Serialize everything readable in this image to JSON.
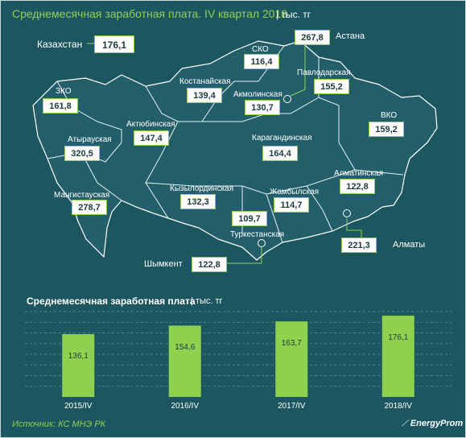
{
  "header": {
    "title": "Среднемесячная заработная плата. IV квартал 2018",
    "unit": "| тыс. тг"
  },
  "national": {
    "label": "Казахстан",
    "value": "176,1"
  },
  "regions": {
    "zko": {
      "label": "ЗКО",
      "value": "161,8"
    },
    "atyrau": {
      "label": "Атырауская",
      "value": "320,5"
    },
    "mangistau": {
      "label": "Мангистауская",
      "value": "278,7"
    },
    "aktobe": {
      "label": "Актюбинская",
      "value": "147,4"
    },
    "kostanay": {
      "label": "Костанайская",
      "value": "139,4"
    },
    "sko": {
      "label": "СКО",
      "value": "116,4"
    },
    "akmola": {
      "label": "Акмолинская",
      "value": "130,7"
    },
    "pavlodar": {
      "label": "Павлодарская",
      "value": "155,2"
    },
    "astana": {
      "label": "Астана",
      "value": "267,8"
    },
    "vko": {
      "label": "ВКО",
      "value": "159,2"
    },
    "karaganda": {
      "label": "Карагандинская",
      "value": "164,4"
    },
    "kyzylorda": {
      "label": "Кызылординская",
      "value": "132,3"
    },
    "zhambyl": {
      "label": "Жамбылская",
      "value": "114,7"
    },
    "almaty_obl": {
      "label": "Алматинская",
      "value": "122,8"
    },
    "turkestan": {
      "label": "Туркестанская",
      "value": "109,7"
    },
    "almaty": {
      "label": "Алматы",
      "value": "221,3"
    },
    "shymkent": {
      "label": "Шымкент",
      "value": "122,8"
    }
  },
  "chart": {
    "title": "Среднемесячная заработная плата",
    "unit": "| тыс. тг"
  },
  "chart_data": {
    "type": "bar",
    "categories": [
      "2015/IV",
      "2016/IV",
      "2017/IV",
      "2018/IV"
    ],
    "values": [
      136.1,
      154.6,
      163.7,
      176.1
    ],
    "value_labels": [
      "136,1",
      "154,6",
      "163,7",
      "176,1"
    ],
    "title": "Среднемесячная заработная плата",
    "ylabel": "| тыс. тг",
    "ylim": [
      0,
      185
    ],
    "grid": true,
    "bar_color": "#8fd14f"
  },
  "footer": {
    "source": "Источник: КС МНЭ РК",
    "logo": "EnergyProm"
  },
  "colors": {
    "background": "#1c5661",
    "accent": "#8fd14f",
    "map_fill": "#24616d",
    "borders": "#ffffff"
  }
}
